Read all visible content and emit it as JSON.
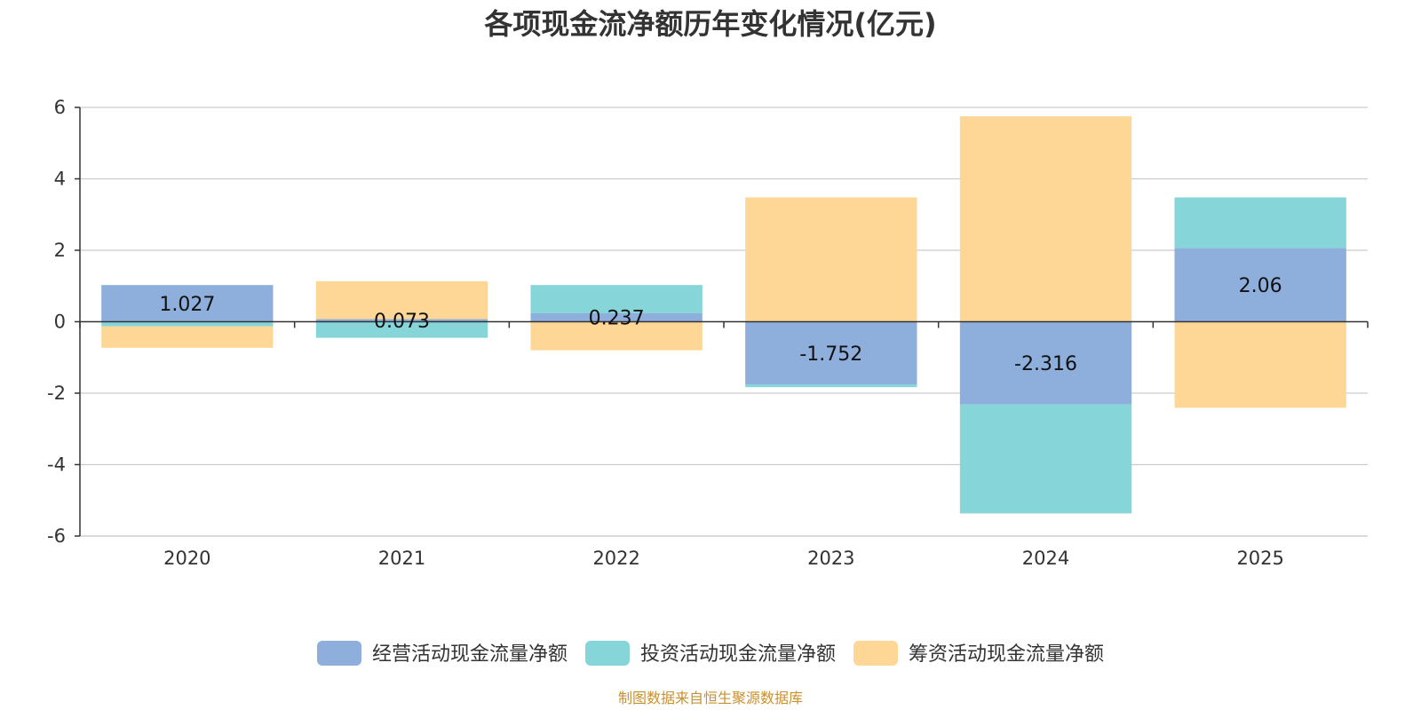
{
  "chart_data": {
    "type": "bar",
    "stacked": true,
    "title": "各项现金流净额历年变化情况(亿元)",
    "categories": [
      "2020",
      "2021",
      "2022",
      "2023",
      "2024",
      "2025"
    ],
    "ylim": [
      -6,
      6
    ],
    "yticks": [
      -6,
      -4,
      -2,
      0,
      2,
      4,
      6
    ],
    "ytick_labels": [
      "-6",
      "-4",
      "-2",
      "0",
      "2",
      "4",
      "6"
    ],
    "grid": true,
    "legend_position": "bottom-center",
    "series": [
      {
        "name": "经营活动现金流量净额",
        "color": "#8eaedb",
        "values": [
          1.027,
          0.073,
          0.237,
          -1.752,
          -2.316,
          2.06
        ],
        "labels": [
          "1.027",
          "0.073",
          "0.237",
          "-1.752",
          "-2.316",
          "2.06"
        ]
      },
      {
        "name": "投资活动现金流量净额",
        "color": "#86d5d8",
        "values": [
          -0.13,
          -0.45,
          0.79,
          -0.08,
          -3.05,
          1.42
        ]
      },
      {
        "name": "筹资活动现金流量净额",
        "color": "#fed797",
        "values": [
          -0.6,
          1.06,
          -0.8,
          3.48,
          5.75,
          -2.41
        ]
      }
    ],
    "source": "制图数据来自恒生聚源数据库"
  }
}
